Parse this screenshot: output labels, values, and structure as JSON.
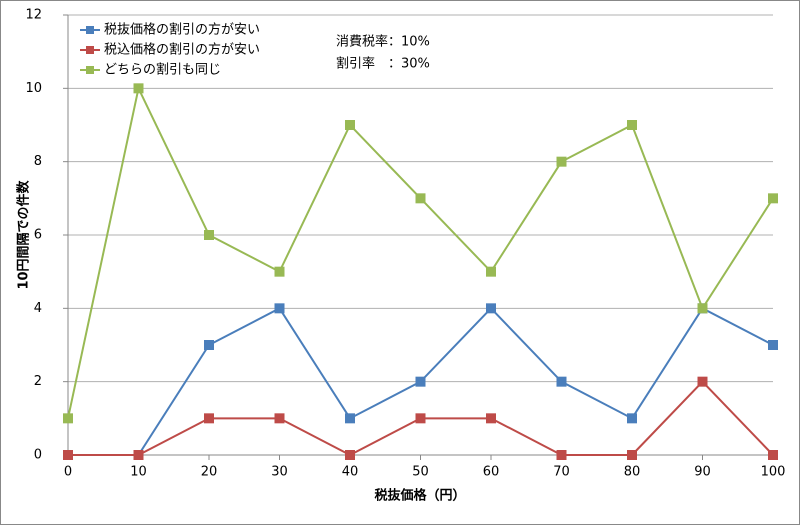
{
  "chart_data": {
    "type": "line",
    "xlabel": "税抜価格（円）",
    "ylabel": "10円間隔での件数",
    "annotations": [
      "消費税率：10%",
      "割引率　：30%"
    ],
    "x": [
      0,
      10,
      20,
      30,
      40,
      50,
      60,
      70,
      80,
      90,
      100
    ],
    "xlim": [
      0,
      100
    ],
    "xticks": [
      0,
      10,
      20,
      30,
      40,
      50,
      60,
      70,
      80,
      90,
      100
    ],
    "ylim": [
      0,
      12
    ],
    "yticks": [
      0,
      2,
      4,
      6,
      8,
      10,
      12
    ],
    "grid": true,
    "legend": "upper left",
    "series": [
      {
        "name": "税抜価格の割引の方が安い",
        "color": "#4a7ebb",
        "values": [
          0,
          0,
          3,
          4,
          1,
          2,
          4,
          2,
          1,
          4,
          3
        ]
      },
      {
        "name": "税込価格の割引の方が安い",
        "color": "#be4b48",
        "values": [
          0,
          0,
          1,
          1,
          0,
          1,
          1,
          0,
          0,
          2,
          0
        ]
      },
      {
        "name": "どちらの割引も同じ",
        "color": "#98b954",
        "values": [
          1,
          10,
          6,
          5,
          9,
          7,
          5,
          8,
          9,
          4,
          7
        ]
      }
    ]
  }
}
